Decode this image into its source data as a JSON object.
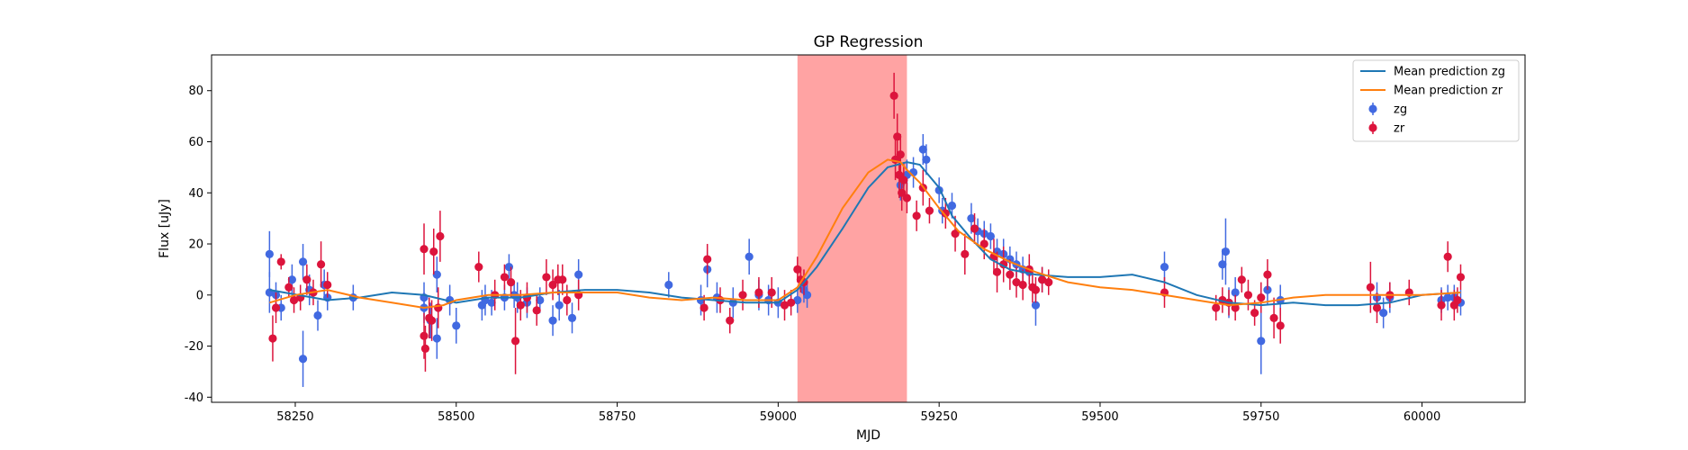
{
  "chart_data": {
    "type": "scatter",
    "title": "GP Regression",
    "xlabel": "MJD",
    "ylabel": "Flux [uJy]",
    "xlim": [
      58120,
      60160
    ],
    "ylim": [
      -42,
      94
    ],
    "xticks": [
      58250,
      58500,
      58750,
      59000,
      59250,
      59500,
      59750,
      60000
    ],
    "yticks": [
      -40,
      -20,
      0,
      20,
      40,
      60,
      80
    ],
    "grid": false,
    "legend_position": "top-right",
    "shaded_region": {
      "x0": 59030,
      "x1": 59200,
      "color": "#ff6666"
    },
    "lines": [
      {
        "name": "Mean prediction zg",
        "color": "#1f77b4",
        "x": [
          58210,
          58300,
          58350,
          58400,
          58450,
          58500,
          58550,
          58600,
          58650,
          58700,
          58750,
          58800,
          58850,
          58900,
          58950,
          59000,
          59030,
          59060,
          59100,
          59140,
          59170,
          59200,
          59220,
          59250,
          59270,
          59300,
          59330,
          59360,
          59400,
          59450,
          59500,
          59550,
          59600,
          59650,
          59700,
          59750,
          59800,
          59850,
          59900,
          59950,
          60000,
          60060
        ],
        "y": [
          2,
          -2,
          -1,
          1,
          0,
          -3,
          -1,
          -1,
          1,
          2,
          2,
          1,
          -1,
          -2,
          -3,
          -3,
          2,
          11,
          26,
          42,
          50,
          52,
          51,
          42,
          31,
          22,
          14,
          10,
          8,
          7,
          7,
          8,
          5,
          0,
          -3,
          -4,
          -3,
          -4,
          -4,
          -3,
          0,
          1
        ]
      },
      {
        "name": "Mean prediction zr",
        "color": "#ff7f0e",
        "x": [
          58210,
          58250,
          58300,
          58350,
          58400,
          58450,
          58480,
          58500,
          58550,
          58600,
          58650,
          58700,
          58750,
          58800,
          58850,
          58900,
          58950,
          59000,
          59030,
          59060,
          59100,
          59140,
          59170,
          59190,
          59200,
          59220,
          59250,
          59280,
          59320,
          59360,
          59400,
          59450,
          59500,
          59550,
          59600,
          59650,
          59700,
          59750,
          59800,
          59850,
          59900,
          59950,
          60000,
          60060
        ],
        "y": [
          -3,
          0,
          2,
          -1,
          -3,
          -5,
          -4,
          -2,
          0,
          0,
          1,
          1,
          1,
          -1,
          -2,
          -1,
          -2,
          -2,
          3,
          15,
          34,
          48,
          53,
          52,
          49,
          44,
          34,
          25,
          18,
          13,
          9,
          5,
          3,
          2,
          0,
          -2,
          -4,
          -3,
          -1,
          0,
          0,
          0,
          0,
          1
        ]
      }
    ],
    "series": [
      {
        "name": "zg",
        "color": "#4169e1",
        "x": [
          58210,
          58210,
          58220,
          58228,
          58245,
          58262,
          58262,
          58272,
          58285,
          58295,
          58300,
          58340,
          58450,
          58450,
          58460,
          58470,
          58470,
          58472,
          58490,
          58500,
          58540,
          58545,
          58555,
          58575,
          58582,
          58590,
          58595,
          58610,
          58630,
          58650,
          58660,
          58680,
          58690,
          58830,
          58880,
          58890,
          58905,
          58930,
          58955,
          58970,
          58985,
          59000,
          59030,
          59040,
          59045,
          59190,
          59200,
          59210,
          59225,
          59230,
          59250,
          59255,
          59270,
          59300,
          59310,
          59320,
          59330,
          59340,
          59350,
          59360,
          59370,
          59380,
          59390,
          59400,
          59410,
          59600,
          59690,
          59695,
          59700,
          59710,
          59750,
          59760,
          59780,
          59930,
          59940,
          59950,
          60030,
          60040,
          60050,
          60060
        ],
        "y": [
          16,
          1,
          0,
          -5,
          6,
          -25,
          13,
          2,
          -8,
          4,
          -1,
          -1,
          -5,
          -1,
          -10,
          -17,
          8,
          -5,
          -2,
          -12,
          -4,
          -2,
          -3,
          -1,
          11,
          0,
          -1,
          -3,
          -2,
          -10,
          -4,
          -9,
          8,
          4,
          -2,
          10,
          -1,
          -3,
          15,
          0,
          -2,
          -3,
          -2,
          2,
          0,
          43,
          47,
          48,
          57,
          53,
          41,
          33,
          35,
          30,
          25,
          24,
          23,
          17,
          16,
          14,
          12,
          10,
          9,
          -4,
          6,
          11,
          12,
          17,
          -3,
          1,
          -18,
          2,
          -2,
          -1,
          -7,
          -1,
          -2,
          -1,
          -1,
          -3
        ],
        "err": [
          9,
          8,
          5,
          5,
          6,
          11,
          7,
          6,
          6,
          6,
          5,
          5,
          6,
          6,
          7,
          8,
          7,
          6,
          6,
          7,
          6,
          6,
          5,
          5,
          5,
          5,
          6,
          6,
          5,
          6,
          6,
          6,
          6,
          5,
          6,
          7,
          6,
          6,
          7,
          6,
          6,
          6,
          5,
          5,
          5,
          6,
          6,
          6,
          6,
          6,
          5,
          5,
          5,
          6,
          5,
          5,
          5,
          5,
          6,
          5,
          5,
          5,
          5,
          8,
          5,
          6,
          6,
          13,
          6,
          6,
          13,
          6,
          6,
          6,
          6,
          6,
          5,
          5,
          5,
          5
        ]
      },
      {
        "name": "zr",
        "color": "#dc143c",
        "x": [
          58215,
          58220,
          58228,
          58240,
          58248,
          58258,
          58268,
          58278,
          58290,
          58300,
          58450,
          58450,
          58452,
          58458,
          58462,
          58465,
          58472,
          58475,
          58535,
          58560,
          58575,
          58585,
          58592,
          58600,
          58610,
          58625,
          58640,
          58650,
          58658,
          58665,
          58672,
          58690,
          58885,
          58890,
          58910,
          58925,
          58945,
          58970,
          58990,
          59010,
          59020,
          59030,
          59035,
          59040,
          59180,
          59182,
          59185,
          59188,
          59190,
          59192,
          59195,
          59200,
          59215,
          59225,
          59235,
          59260,
          59275,
          59290,
          59305,
          59320,
          59335,
          59340,
          59350,
          59360,
          59370,
          59380,
          59390,
          59395,
          59400,
          59410,
          59420,
          59600,
          59680,
          59690,
          59700,
          59710,
          59720,
          59730,
          59740,
          59750,
          59760,
          59770,
          59780,
          59920,
          59930,
          59950,
          59980,
          60030,
          60040,
          60050,
          60055,
          60060
        ],
        "y": [
          -17,
          -5,
          13,
          3,
          -2,
          -1,
          6,
          1,
          12,
          4,
          18,
          -16,
          -21,
          -9,
          -10,
          17,
          -5,
          23,
          11,
          0,
          7,
          5,
          -18,
          -4,
          -1,
          -6,
          7,
          4,
          6,
          6,
          -2,
          0,
          -5,
          14,
          -2,
          -10,
          0,
          1,
          1,
          -4,
          -3,
          10,
          6,
          5,
          78,
          53,
          62,
          47,
          55,
          40,
          45,
          38,
          31,
          42,
          33,
          32,
          24,
          16,
          26,
          20,
          15,
          9,
          12,
          8,
          5,
          4,
          10,
          3,
          2,
          6,
          5,
          1,
          -5,
          -2,
          -3,
          -5,
          6,
          0,
          -7,
          -1,
          8,
          -9,
          -12,
          3,
          -5,
          0,
          1,
          -4,
          15,
          -4,
          -2,
          7
        ],
        "err": [
          9,
          6,
          3,
          4,
          5,
          5,
          6,
          5,
          9,
          5,
          10,
          9,
          9,
          8,
          8,
          9,
          8,
          10,
          6,
          6,
          5,
          6,
          13,
          6,
          6,
          6,
          7,
          6,
          6,
          6,
          6,
          6,
          5,
          6,
          5,
          5,
          6,
          6,
          6,
          6,
          5,
          5,
          5,
          5,
          9,
          8,
          9,
          9,
          8,
          7,
          7,
          6,
          6,
          7,
          5,
          6,
          7,
          8,
          6,
          6,
          7,
          8,
          7,
          6,
          6,
          6,
          6,
          6,
          5,
          5,
          5,
          6,
          5,
          5,
          5,
          5,
          5,
          6,
          5,
          6,
          6,
          8,
          7,
          10,
          6,
          5,
          5,
          6,
          6,
          6,
          5,
          5
        ]
      }
    ]
  }
}
